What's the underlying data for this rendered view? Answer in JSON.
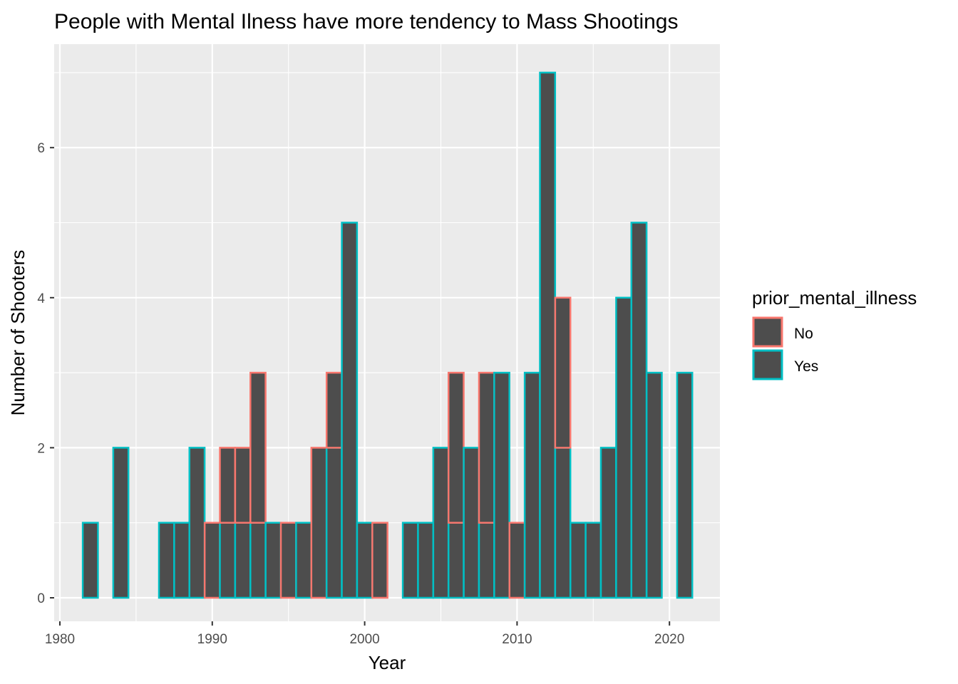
{
  "chart_data": {
    "type": "bar",
    "stacked": true,
    "title": "People with Mental Ilness have more tendency to Mass Shootings",
    "xlabel": "Year",
    "ylabel": "Number of Shooters",
    "xlim": [
      1980,
      2023
    ],
    "ylim": [
      0,
      7
    ],
    "x_ticks": [
      "1980",
      "1990",
      "2000",
      "2010",
      "2020"
    ],
    "y_ticks": [
      "0",
      "2",
      "4",
      "6"
    ],
    "grid": true,
    "legend": {
      "title": "prior_mental_illness",
      "position": "right"
    },
    "colors": {
      "No": "#F8766D",
      "Yes": "#00BFC4",
      "fill": "#4D4D4D",
      "panel": "#EBEBEB",
      "grid": "#FFFFFF"
    },
    "x": [
      1982,
      1984,
      1987,
      1988,
      1989,
      1990,
      1991,
      1992,
      1993,
      1994,
      1995,
      1996,
      1997,
      1998,
      1999,
      2000,
      2001,
      2003,
      2004,
      2005,
      2006,
      2007,
      2008,
      2009,
      2010,
      2011,
      2012,
      2013,
      2014,
      2015,
      2016,
      2017,
      2018,
      2019,
      2021
    ],
    "series": [
      {
        "name": "No",
        "values": [
          0,
          0,
          0,
          0,
          0,
          1,
          1,
          1,
          2,
          0,
          1,
          0,
          2,
          1,
          0,
          0,
          1,
          0,
          0,
          0,
          2,
          0,
          2,
          0,
          1,
          0,
          0,
          2,
          0,
          0,
          0,
          0,
          0,
          0,
          0
        ]
      },
      {
        "name": "Yes",
        "values": [
          1,
          2,
          1,
          1,
          2,
          0,
          1,
          1,
          1,
          1,
          0,
          1,
          0,
          2,
          5,
          1,
          0,
          1,
          1,
          2,
          1,
          2,
          1,
          3,
          0,
          3,
          7,
          2,
          1,
          1,
          2,
          4,
          5,
          3,
          3
        ]
      }
    ]
  }
}
